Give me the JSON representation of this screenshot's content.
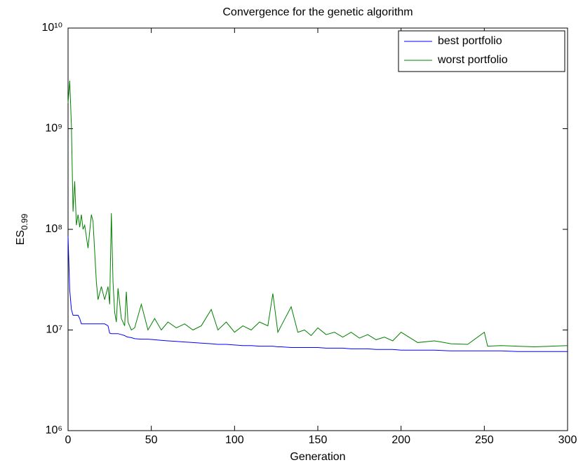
{
  "chart_data": {
    "type": "line",
    "title": "Convergence for the genetic algorithm",
    "xlabel": "Generation",
    "ylabel": "ES",
    "ylabel_subscript": "0.99",
    "log_y": true,
    "legend": "northeast",
    "xlim": [
      0,
      300
    ],
    "xticks": [
      0,
      50,
      100,
      150,
      200,
      250,
      300
    ],
    "ylim": [
      1000000,
      10000000000
    ],
    "yticks": [
      {
        "value": 1000000,
        "label": "10⁶"
      },
      {
        "value": 10000000,
        "label": "10⁷"
      },
      {
        "value": 100000000,
        "label": "10⁸"
      },
      {
        "value": 1000000000,
        "label": "10⁹"
      },
      {
        "value": 10000000000,
        "label": "10¹⁰"
      }
    ],
    "x": [
      0,
      1,
      2,
      3,
      4,
      5,
      6,
      7,
      8,
      9,
      10,
      12,
      14,
      15,
      17,
      18,
      20,
      22,
      24,
      25,
      26,
      27,
      28,
      29,
      30,
      32,
      34,
      35,
      36,
      38,
      40,
      44,
      48,
      52,
      56,
      60,
      65,
      70,
      75,
      80,
      86,
      90,
      95,
      100,
      105,
      110,
      115,
      120,
      123,
      126,
      128,
      134,
      138,
      142,
      146,
      150,
      155,
      160,
      165,
      170,
      175,
      180,
      185,
      190,
      195,
      200,
      210,
      220,
      230,
      240,
      250,
      252,
      260,
      270,
      280,
      290,
      300
    ],
    "series": [
      {
        "name": "best portfolio",
        "color": "#0000ff",
        "values": [
          85000000.0,
          25000000.0,
          16000000.0,
          14000000.0,
          14000000.0,
          14000000.0,
          14000000.0,
          13000000.0,
          11500000.0,
          11500000.0,
          11500000.0,
          11500000.0,
          11500000.0,
          11500000.0,
          11500000.0,
          11500000.0,
          11500000.0,
          11500000.0,
          11000000.0,
          9300000.0,
          9200000.0,
          9200000.0,
          9200000.0,
          9200000.0,
          9200000.0,
          9000000.0,
          8800000.0,
          8600000.0,
          8500000.0,
          8400000.0,
          8200000.0,
          8100000.0,
          8100000.0,
          8000000.0,
          7900000.0,
          7800000.0,
          7700000.0,
          7600000.0,
          7500000.0,
          7400000.0,
          7300000.0,
          7200000.0,
          7200000.0,
          7100000.0,
          7000000.0,
          7000000.0,
          6900000.0,
          6900000.0,
          6900000.0,
          6800000.0,
          6800000.0,
          6700000.0,
          6700000.0,
          6700000.0,
          6700000.0,
          6700000.0,
          6600000.0,
          6600000.0,
          6600000.0,
          6500000.0,
          6500000.0,
          6500000.0,
          6400000.0,
          6400000.0,
          6400000.0,
          6300000.0,
          6300000.0,
          6300000.0,
          6200000.0,
          6200000.0,
          6200000.0,
          6200000.0,
          6200000.0,
          6100000.0,
          6100000.0,
          6100000.0,
          6100000.0
        ]
      },
      {
        "name": "worst portfolio",
        "color": "#008000",
        "values": [
          1800000000.0,
          3000000000.0,
          1100000000.0,
          150000000.0,
          300000000.0,
          110000000.0,
          140000000.0,
          105000000.0,
          140000000.0,
          100000000.0,
          110000000.0,
          65000000.0,
          140000000.0,
          120000000.0,
          30000000.0,
          20000000.0,
          27000000.0,
          20000000.0,
          27000000.0,
          18000000.0,
          145000000.0,
          30000000.0,
          15000000.0,
          12000000.0,
          26000000.0,
          13000000.0,
          11000000.0,
          24000000.0,
          12000000.0,
          10000000.0,
          10500000.0,
          18000000.0,
          10000000.0,
          13000000.0,
          10000000.0,
          12000000.0,
          10500000.0,
          11500000.0,
          10000000.0,
          11000000.0,
          16000000.0,
          10000000.0,
          12000000.0,
          9500000.0,
          11000000.0,
          10000000.0,
          12000000.0,
          11000000.0,
          23000000.0,
          9500000.0,
          11000000.0,
          17000000.0,
          9500000.0,
          10000000.0,
          8800000.0,
          10500000.0,
          9000000.0,
          9500000.0,
          8500000.0,
          9500000.0,
          8300000.0,
          9000000.0,
          8000000.0,
          8500000.0,
          7800000.0,
          9500000.0,
          7500000.0,
          7800000.0,
          7300000.0,
          7200000.0,
          9500000.0,
          6900000.0,
          7000000.0,
          6900000.0,
          6800000.0,
          6900000.0,
          7000000.0
        ]
      }
    ]
  }
}
